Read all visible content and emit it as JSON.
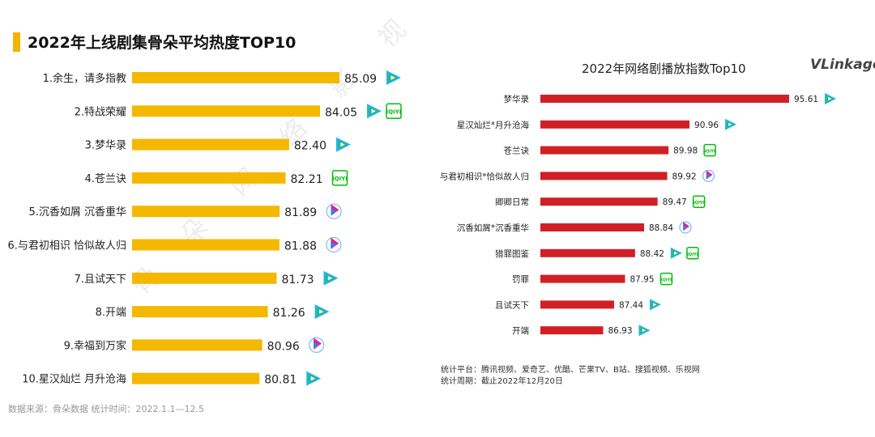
{
  "left": {
    "title": "2022年上线剧集骨朵平均热度TOP10",
    "source": "数据来源：骨朵数据   统计时间：2022.1.1—12.5",
    "watermark": "骨 朵 网 络 影 视",
    "bar_color": "#f5b800"
  },
  "right": {
    "title": "2022年网络剧播放指数Top10",
    "logo": "VLinkage",
    "note_platforms": "统计平台：腾讯视频、爱奇艺、优酷、芒果TV、B站、搜狐视频、乐视网",
    "note_period": "统计周期：截止2022年12月20日",
    "bar_color": "#d11f26"
  },
  "platform_colors": {
    "tencent": "#2dbb5e",
    "iqiyi": "#00be06",
    "youku": "#1a8cff",
    "mango": "#ff7a00",
    "sohu": "#ffb400",
    "letv": "#e60012"
  },
  "chart_data": [
    {
      "type": "bar",
      "orientation": "horizontal",
      "title": "2022年上线剧集骨朵平均热度TOP10",
      "categories": [
        "1.余生，请多指教",
        "2.特战荣耀",
        "3.梦华录",
        "4.苍兰诀",
        "5.沉香如屑 沉香重华",
        "6.与君初相识 恰似故人归",
        "7.且试天下",
        "8.开端",
        "9.幸福到万家",
        "10.星汉灿烂 月升沧海"
      ],
      "values": [
        85.09,
        84.05,
        82.4,
        82.21,
        81.89,
        81.88,
        81.73,
        81.26,
        80.96,
        80.81
      ],
      "platforms": [
        [
          "tencent-video-icon"
        ],
        [
          "tencent-video-icon",
          "iqiyi-icon"
        ],
        [
          "tencent-video-icon"
        ],
        [
          "iqiyi-icon"
        ],
        [
          "youku-icon"
        ],
        [
          "youku-icon"
        ],
        [
          "tencent-video-icon"
        ],
        [
          "tencent-video-icon"
        ],
        [
          "youku-icon"
        ],
        [
          "tencent-video-icon"
        ]
      ],
      "platform_labels": {
        "iqiyi-icon": "iQIYI"
      }
    },
    {
      "type": "bar",
      "orientation": "horizontal",
      "title": "2022年网络剧播放指数Top10",
      "categories": [
        "梦华录",
        "星汉灿烂*月升沧海",
        "苍兰诀",
        "与君初相识*恰似故人归",
        "卿卿日常",
        "沉香如屑*沉香重华",
        "猎罪图鉴",
        "罚罪",
        "且试天下",
        "开端"
      ],
      "values": [
        95.61,
        90.96,
        89.98,
        89.92,
        89.47,
        88.84,
        88.42,
        87.95,
        87.44,
        86.93
      ],
      "platforms": [
        [
          "tencent-video-icon"
        ],
        [
          "tencent-video-icon"
        ],
        [
          "iqiyi-icon"
        ],
        [
          "youku-icon"
        ],
        [
          "iqiyi-icon"
        ],
        [
          "youku-icon"
        ],
        [
          "tencent-video-icon",
          "iqiyi-icon"
        ],
        [
          "iqiyi-icon"
        ],
        [
          "tencent-video-icon"
        ],
        [
          "tencent-video-icon"
        ]
      ]
    }
  ]
}
